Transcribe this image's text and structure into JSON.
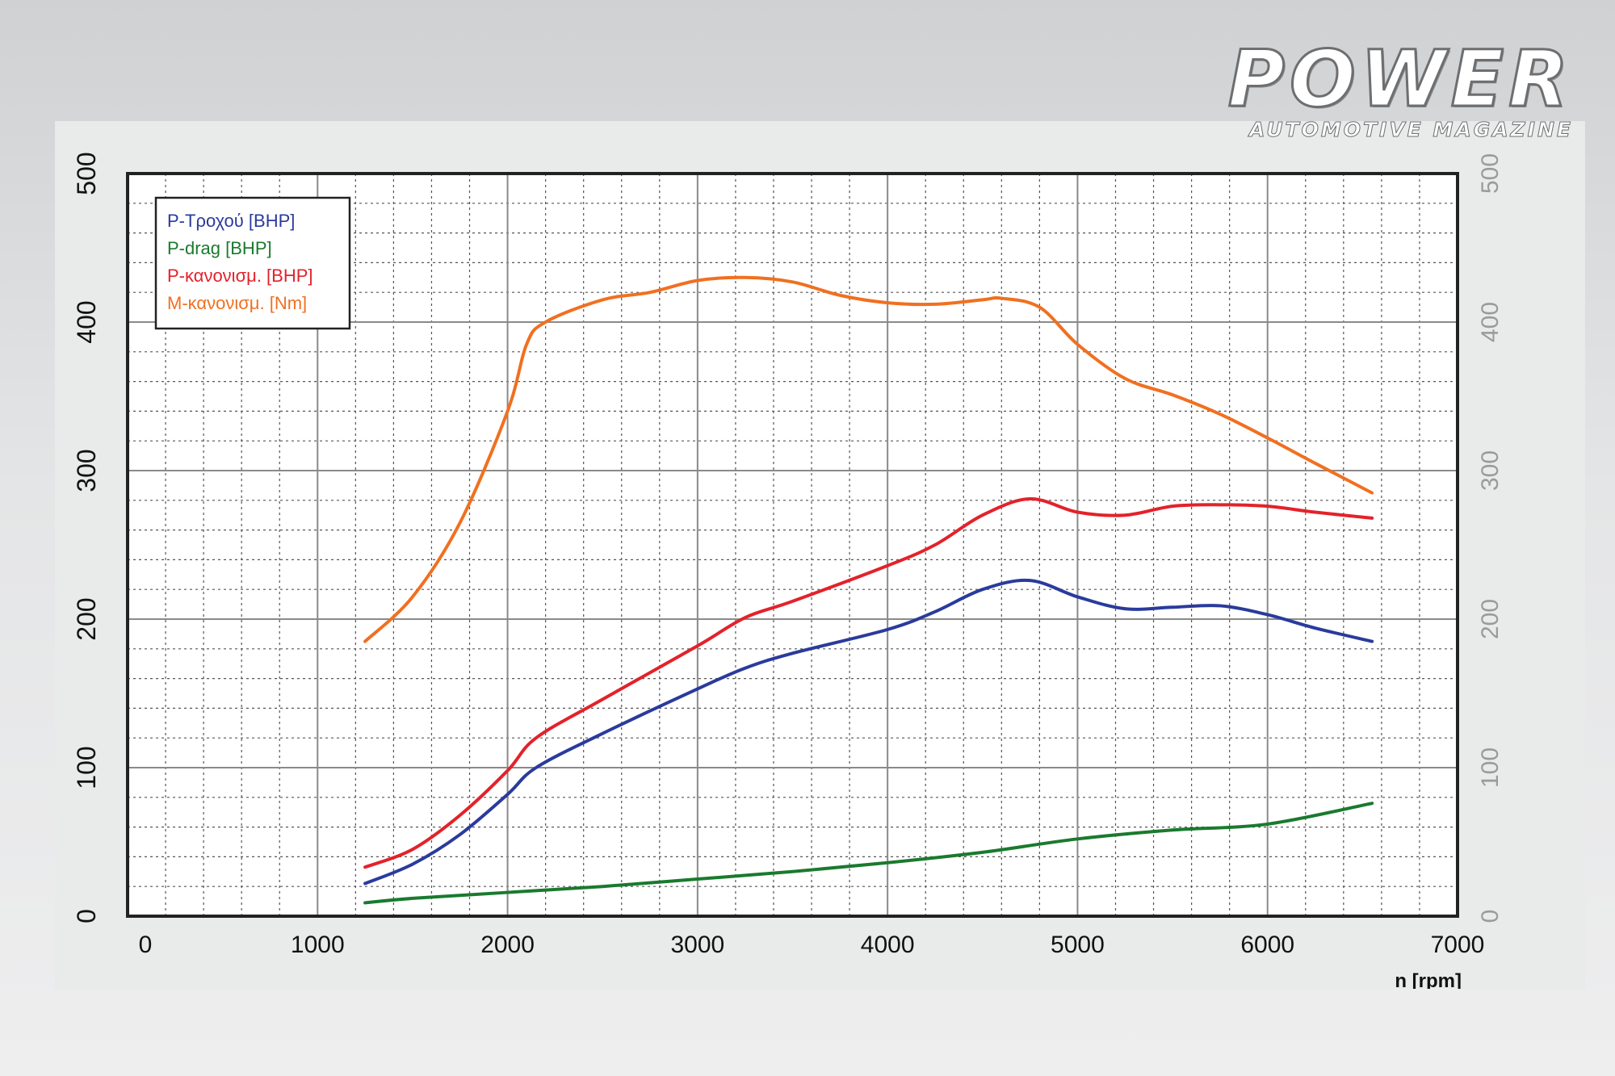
{
  "brand": {
    "name": "POWER",
    "tagline": "AUTOMOTIVE MAGAZINE"
  },
  "chart_data": {
    "type": "line",
    "title": "",
    "xlabel": "n [rpm]",
    "ylabel": "",
    "xlim": [
      0,
      7000
    ],
    "ylim": [
      0,
      500
    ],
    "x_ticks": [
      0,
      1000,
      2000,
      3000,
      4000,
      5000,
      6000,
      7000
    ],
    "y_ticks": [
      0,
      100,
      200,
      300,
      400,
      500
    ],
    "y2_ticks": [
      0,
      100,
      200,
      300,
      400,
      500
    ],
    "grid": true,
    "legend_position": "top-left",
    "series": [
      {
        "name": "P-Τροχού [BHP]",
        "color": "#2a3b9c",
        "x": [
          1250,
          1500,
          1750,
          2000,
          2150,
          2500,
          3000,
          3250,
          3500,
          4000,
          4250,
          4500,
          4750,
          5000,
          5250,
          5500,
          5750,
          6000,
          6250,
          6550
        ],
        "y": [
          22,
          35,
          55,
          82,
          100,
          123,
          153,
          167,
          177,
          193,
          205,
          220,
          226,
          215,
          207,
          208,
          209,
          203,
          194,
          185
        ]
      },
      {
        "name": "P-drag [BHP]",
        "color": "#1a7a2e",
        "x": [
          1250,
          1500,
          2000,
          2500,
          3000,
          3500,
          4000,
          4500,
          5000,
          5500,
          6000,
          6550
        ],
        "y": [
          9,
          12,
          16,
          20,
          25,
          30,
          36,
          43,
          52,
          58,
          62,
          76
        ]
      },
      {
        "name": "P-κανονισμ. [BHP]",
        "color": "#e3222a",
        "x": [
          1250,
          1500,
          1750,
          2000,
          2150,
          2500,
          3000,
          3250,
          3500,
          4000,
          4250,
          4500,
          4750,
          5000,
          5250,
          5500,
          5750,
          6000,
          6250,
          6550
        ],
        "y": [
          33,
          45,
          68,
          98,
          120,
          146,
          182,
          201,
          212,
          236,
          250,
          270,
          281,
          272,
          270,
          276,
          277,
          276,
          272,
          268
        ]
      },
      {
        "name": "M-κανονισμ. [Nm]",
        "color": "#f07020",
        "x": [
          1250,
          1500,
          1750,
          2000,
          2100,
          2200,
          2500,
          2750,
          3000,
          3250,
          3500,
          3750,
          4000,
          4250,
          4500,
          4600,
          4800,
          5000,
          5250,
          5500,
          5750,
          6000,
          6250,
          6550
        ],
        "y": [
          185,
          215,
          265,
          340,
          385,
          400,
          415,
          420,
          428,
          430,
          427,
          418,
          413,
          412,
          415,
          416,
          410,
          385,
          362,
          351,
          338,
          322,
          305,
          285
        ]
      }
    ]
  }
}
